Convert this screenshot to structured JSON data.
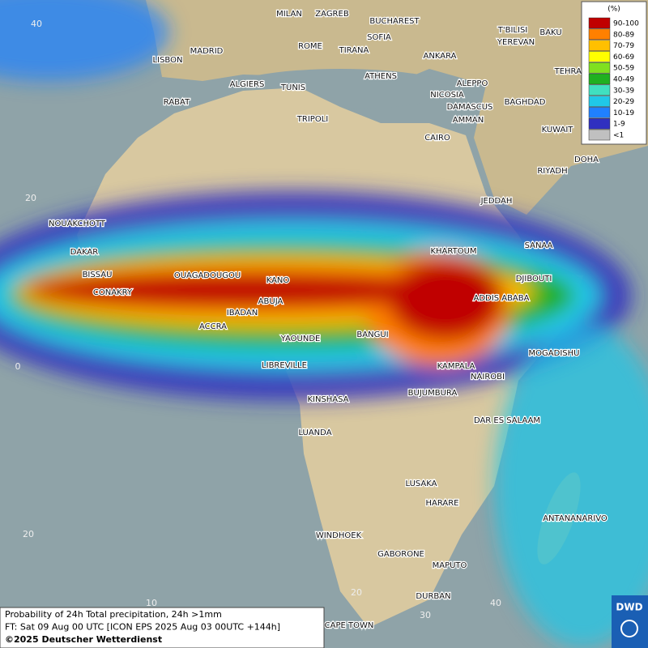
{
  "cities": [
    "MILAN",
    "ZAGREB",
    "BUCHAREST",
    "T'BILISI",
    "BAKU",
    "SOFIA",
    "YEREVAN",
    "ROME",
    "TIRANA",
    "MADRID",
    "ANKARA",
    "LISBON",
    "ATHENS",
    "TEHRAN",
    "ALGIERS",
    "TUNIS",
    "ALEPPO",
    "RABAT",
    "NICOSIA",
    "BAGHDAD",
    "DAMASCUS",
    "TRIPOLI",
    "AMMAN",
    "KUWAIT",
    "CAIRO",
    "DOHA",
    "RIYADH",
    "JEDDAH",
    "NOUAKCHOTT",
    "KHARTOUM",
    "SANAA",
    "DAKAR",
    "BISSAU",
    "OUAGADOUGOU",
    "KANO",
    "DJIBOUTI",
    "CONAKRY",
    "ABUJA",
    "ADDIS ABABA",
    "IBADAN",
    "ACCRA",
    "BANGUI",
    "YAOUNDE",
    "MOGADISHU",
    "LIBREVILLE",
    "KAMPALA",
    "NAIROBI",
    "BUJUMBURA",
    "KINSHASA",
    "DAR ES SALAAM",
    "LUANDA",
    "LUSAKA",
    "HARARE",
    "ANTANANARIVO",
    "WINDHOEK",
    "GABORONE",
    "MAPUTO",
    "DURBAN",
    "CAPE TOWN"
  ],
  "grid_labels": [
    "40",
    "20",
    "0",
    "20",
    "10",
    "20",
    "30",
    "40"
  ],
  "legend": {
    "title": "(%)",
    "items": [
      {
        "label": "90-100",
        "color": "#c00000"
      },
      {
        "label": "80-89",
        "color": "#ff8000"
      },
      {
        "label": "70-79",
        "color": "#ffc000"
      },
      {
        "label": "60-69",
        "color": "#ffff00"
      },
      {
        "label": "50-59",
        "color": "#80e020"
      },
      {
        "label": "40-49",
        "color": "#20b020"
      },
      {
        "label": "30-39",
        "color": "#40e0c0"
      },
      {
        "label": "20-29",
        "color": "#20c8e8"
      },
      {
        "label": "10-19",
        "color": "#2080ff"
      },
      {
        "label": "1-9",
        "color": "#3030c0"
      },
      {
        "label": "<1",
        "color": "#c0c0c0"
      }
    ]
  },
  "footer": [
    "Probability of 24h Total precipitation, 24h >1mm",
    "FT: Sat 09 Aug 00 UTC [ICON EPS 2025 Aug 03 00UTC +144h]",
    "©2025 Deutscher Wetterdienst"
  ],
  "logo": "DWD"
}
